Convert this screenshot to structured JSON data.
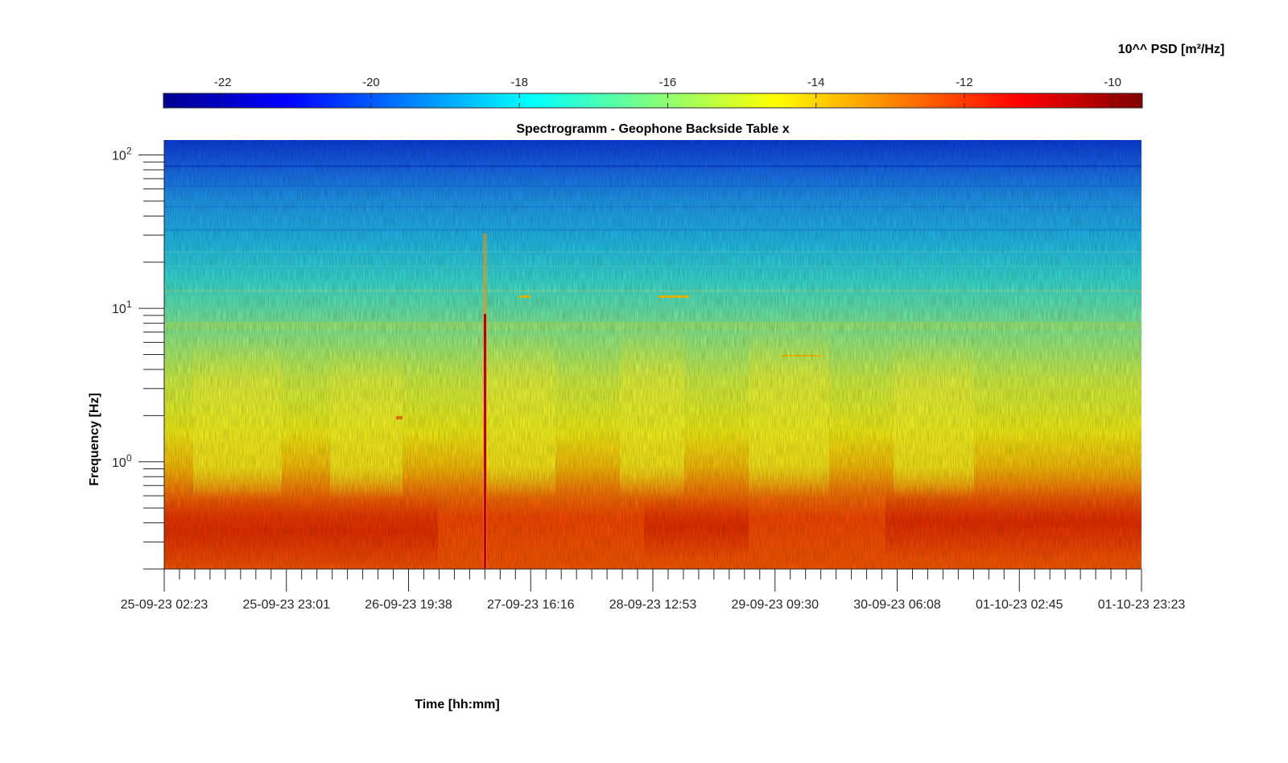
{
  "chart_data": {
    "type": "heatmap",
    "title": "Spectrogramm - Geophone Backside Table x",
    "xlabel": "Time [hh:mm]",
    "ylabel": "Frequency [Hz]",
    "colorbar": {
      "label": "10^^ PSD [m²/Hz]",
      "range": [
        -22.8,
        -9.6
      ],
      "ticks": [
        -22,
        -20,
        -18,
        -16,
        -14,
        -12,
        -10
      ],
      "tick_labels": [
        "-22",
        "-20",
        "-18",
        "-16",
        "-14",
        "-12",
        "-10"
      ],
      "colormap": "jet",
      "placement": "top"
    },
    "x_ticks": [
      "25-09-23 02:23",
      "25-09-23 23:01",
      "26-09-23 19:38",
      "27-09-23 16:16",
      "28-09-23 12:53",
      "29-09-23 09:30",
      "30-09-23 06:08",
      "01-10-23 02:45",
      "01-10-23 23:23"
    ],
    "y_scale": "log",
    "y_range_hz": [
      0.2,
      125
    ],
    "y_ticks": [
      {
        "base": "10",
        "exp": "0",
        "value": 1
      },
      {
        "base": "10",
        "exp": "1",
        "value": 10
      },
      {
        "base": "10",
        "exp": "2",
        "value": 100
      }
    ],
    "grid": false,
    "psd_profile": [
      {
        "freq": 0.2,
        "log_psd": -11.7
      },
      {
        "freq": 0.3,
        "log_psd": -11.6
      },
      {
        "freq": 0.45,
        "log_psd": -11.8
      },
      {
        "freq": 0.6,
        "log_psd": -12.3
      },
      {
        "freq": 0.75,
        "log_psd": -13.0
      },
      {
        "freq": 1.0,
        "log_psd": -14.1
      },
      {
        "freq": 1.5,
        "log_psd": -14.6
      },
      {
        "freq": 2.5,
        "log_psd": -15.0
      },
      {
        "freq": 4.0,
        "log_psd": -15.5
      },
      {
        "freq": 7.0,
        "log_psd": -16.3
      },
      {
        "freq": 10,
        "log_psd": -17.0
      },
      {
        "freq": 20,
        "log_psd": -17.8
      },
      {
        "freq": 40,
        "log_psd": -18.6
      },
      {
        "freq": 70,
        "log_psd": -19.6
      },
      {
        "freq": 100,
        "log_psd": -20.8
      },
      {
        "freq": 125,
        "log_psd": -21.4
      }
    ],
    "events": [
      {
        "time": "27-09-23 08:50",
        "type": "broadband transient",
        "log_psd": -10.2
      }
    ]
  }
}
